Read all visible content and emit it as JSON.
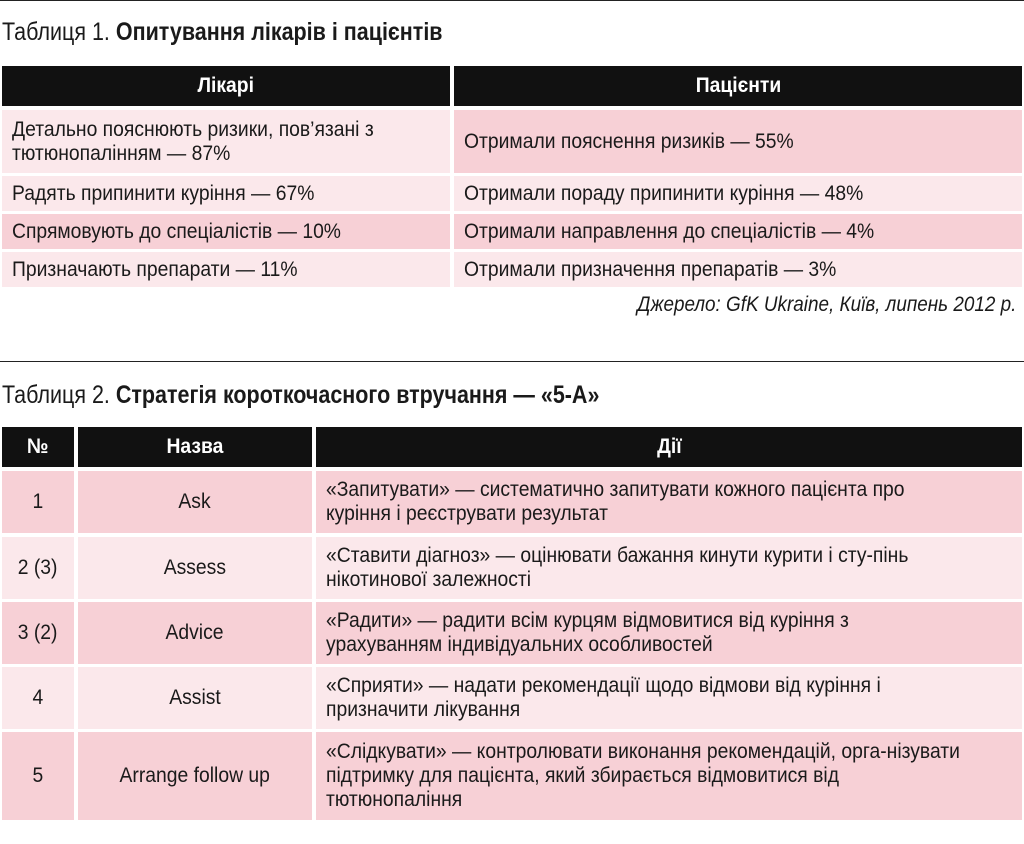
{
  "table1": {
    "caption_prefix": "Таблиця 1.",
    "caption_title": "Опитування лікарів і пацієнтів",
    "headers": [
      "Лікарі",
      "Пацієнти"
    ],
    "rows": [
      [
        "Детально пояснюють ризики, пов’язані з тютюнопалінням — 87%",
        "Отримали пояснення ризиків — 55%"
      ],
      [
        "Радять припинити куріння — 67%",
        "Отримали пораду припинити куріння — 48%"
      ],
      [
        "Спрямовують до спеціалістів — 10%",
        "Отримали направлення до спеціалістів — 4%"
      ],
      [
        "Призначають препарати — 11%",
        "Отримали призначення препаратів — 3%"
      ]
    ],
    "source": "Джерело: GfK Ukraine, Київ, липень 2012 р."
  },
  "table2": {
    "caption_prefix": "Таблиця 2.",
    "caption_title": "Стратегія короткочасного втручання — «5-А»",
    "headers": [
      "№",
      "Назва",
      "Дії"
    ],
    "rows": [
      [
        "1",
        "Ask",
        "«Запитувати» — систематично запитувати кожного пацієнта про куріння і реєструвати результат"
      ],
      [
        "2 (3)",
        "Assess",
        "«Ставити діагноз» — оцінювати бажання кинути курити і сту-пінь нікотинової залежності"
      ],
      [
        "3 (2)",
        "Advice",
        "«Радити» — радити всім курцям відмовитися від куріння з урахуванням індивідуальних особливостей"
      ],
      [
        "4",
        "Assist",
        "«Сприяти» — надати рекомендації щодо відмови від куріння і призначити лікування"
      ],
      [
        "5",
        "Arrange follow up",
        "«Слідкувати» — контролювати виконання рекомендацій, орга-нізувати підтримку для пацієнта, який збирається відмовитися від тютюнопаління"
      ]
    ]
  },
  "colors": {
    "header_bg": "#111111",
    "row_pink": "#f7d0d6",
    "row_light": "#fbe8eb"
  }
}
